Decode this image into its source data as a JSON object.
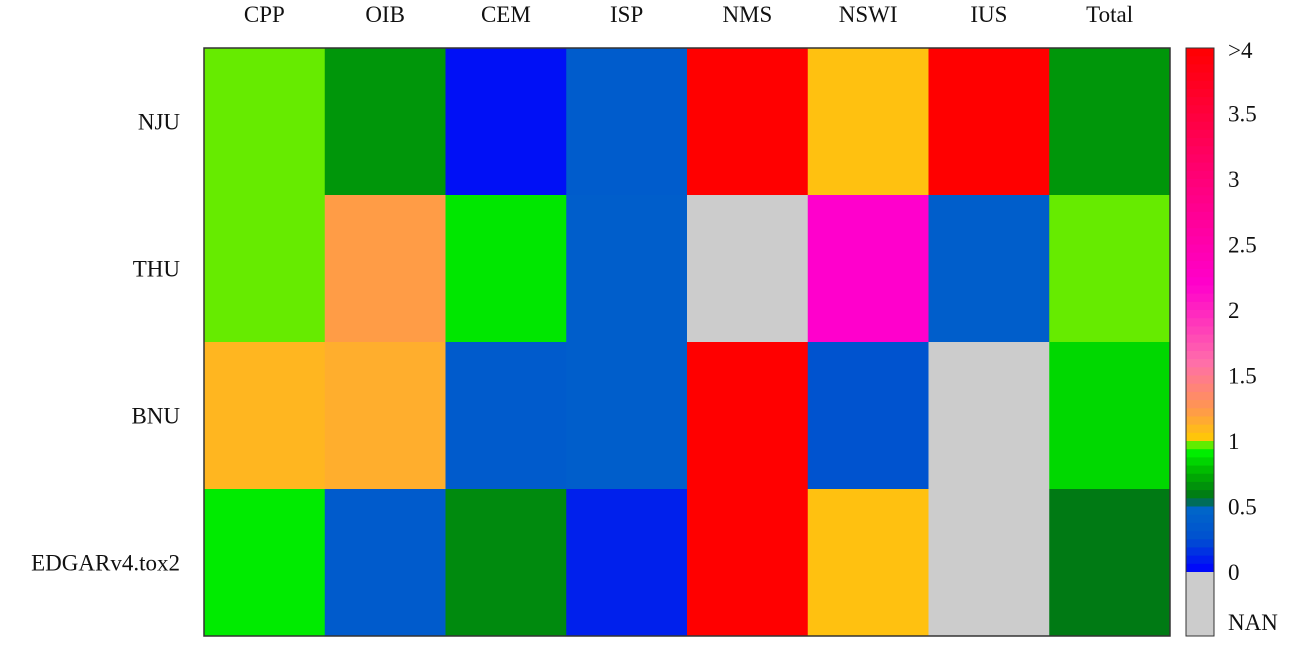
{
  "chart_data": {
    "type": "heatmap",
    "columns": [
      "CPP",
      "OIB",
      "CEM",
      "ISP",
      "NMS",
      "NSWI",
      "IUS",
      "Total"
    ],
    "rows": [
      "NJU",
      "THU",
      "BNU",
      "EDGARv4.tox2"
    ],
    "values": [
      [
        0.97,
        0.67,
        0.05,
        0.38,
        4.0,
        1.05,
        4.0,
        0.67
      ],
      [
        0.97,
        1.22,
        0.89,
        0.4,
        null,
        2.2,
        0.4,
        0.97
      ],
      [
        1.1,
        1.14,
        0.36,
        0.4,
        4.0,
        0.28,
        null,
        0.85
      ],
      [
        0.9,
        0.36,
        0.63,
        0.1,
        4.0,
        1.05,
        null,
        0.58
      ]
    ],
    "colorbar": {
      "ticks": [
        ">4",
        "3.5",
        "3",
        "2.5",
        "2",
        "1.5",
        "1",
        "0.5",
        "0",
        "NAN"
      ],
      "range": [
        0,
        4
      ],
      "nan_color": "#cccccc"
    },
    "title": "",
    "xlabel": "",
    "ylabel": ""
  }
}
